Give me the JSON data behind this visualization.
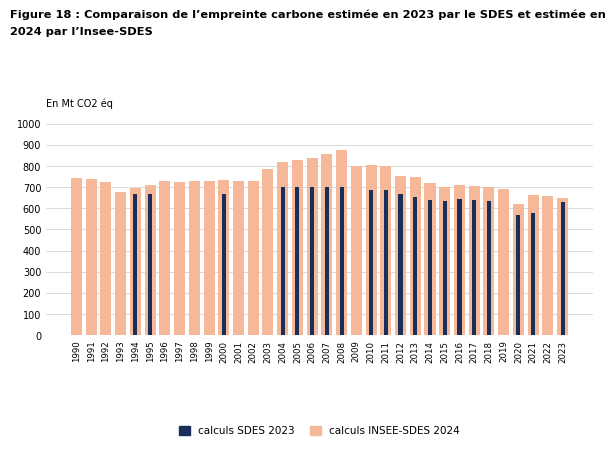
{
  "title_line1": "Figure 18 : Comparaison de l’empreinte carbone estimée en 2023 par le SDES et estimée en",
  "title_line2": "2024 par l’Insee-SDES",
  "ylabel": "En Mt CO2 éq",
  "years": [
    1990,
    1991,
    1992,
    1993,
    1994,
    1995,
    1996,
    1997,
    1998,
    1999,
    2000,
    2001,
    2002,
    2003,
    2004,
    2005,
    2006,
    2007,
    2008,
    2009,
    2010,
    2011,
    2012,
    2013,
    2014,
    2015,
    2016,
    2017,
    2018,
    2019,
    2020,
    2021,
    2022,
    2023
  ],
  "sdes2023": [
    null,
    null,
    null,
    null,
    670,
    670,
    null,
    null,
    null,
    null,
    670,
    null,
    null,
    null,
    700,
    700,
    700,
    700,
    700,
    null,
    685,
    685,
    670,
    655,
    640,
    635,
    645,
    640,
    635,
    null,
    570,
    580,
    null,
    630
  ],
  "insee2024": [
    745,
    740,
    725,
    675,
    695,
    710,
    730,
    725,
    730,
    730,
    735,
    730,
    730,
    785,
    820,
    830,
    840,
    855,
    875,
    800,
    805,
    800,
    755,
    750,
    720,
    700,
    710,
    705,
    700,
    690,
    620,
    665,
    660,
    650
  ],
  "sdes_color": "#1a2e5a",
  "insee_color": "#f5b99a",
  "background_color": "#ffffff",
  "ylim": [
    0,
    1000
  ],
  "yticks": [
    0,
    100,
    200,
    300,
    400,
    500,
    600,
    700,
    800,
    900,
    1000
  ],
  "legend_sdes": "calculs SDES 2023",
  "legend_insee": "calculs INSEE-SDES 2024"
}
